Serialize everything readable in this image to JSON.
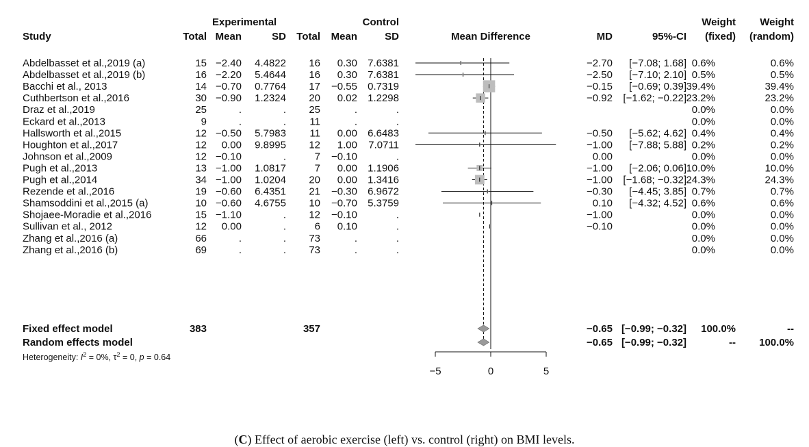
{
  "caption": {
    "letter": "C",
    "text": ") Effect of aerobic exercise (left) vs. control (right) on BMI levels."
  },
  "headers": {
    "study": "Study",
    "experimental": "Experimental",
    "control": "Control",
    "total": "Total",
    "mean": "Mean",
    "sd": "SD",
    "mean_difference": "Mean Difference",
    "md": "MD",
    "ci": "95%-CI",
    "weight": "Weight",
    "fixed": "(fixed)",
    "random": "(random)"
  },
  "chart_data": {
    "type": "forest",
    "x_axis": {
      "lim": [
        -5,
        5
      ],
      "ticks": [
        "−5",
        "0",
        "5"
      ],
      "tick_values": [
        -5,
        0,
        5
      ]
    },
    "studies": [
      {
        "study": "Abdelbasset et al.,2019 (a)",
        "e_total": "15",
        "e_mean": "−2.40",
        "e_sd": "4.4822",
        "c_total": "16",
        "c_mean": "0.30",
        "c_sd": "7.6381",
        "md_text": "−2.70",
        "ci_text": "[−7.08;  1.68]",
        "w_fixed": "0.6%",
        "w_random": "0.6%",
        "md": -2.7,
        "lo": -7.08,
        "hi": 1.68,
        "w": 0.6
      },
      {
        "study": "Abdelbasset et al.,2019 (b)",
        "e_total": "16",
        "e_mean": "−2.20",
        "e_sd": "5.4644",
        "c_total": "16",
        "c_mean": "0.30",
        "c_sd": "7.6381",
        "md_text": "−2.50",
        "ci_text": "[−7.10;  2.10]",
        "w_fixed": "0.5%",
        "w_random": "0.5%",
        "md": -2.5,
        "lo": -7.1,
        "hi": 2.1,
        "w": 0.5
      },
      {
        "study": "Bacchi et al., 2013",
        "e_total": "14",
        "e_mean": "−0.70",
        "e_sd": "0.7764",
        "c_total": "17",
        "c_mean": "−0.55",
        "c_sd": "0.7319",
        "md_text": "−0.15",
        "ci_text": "[−0.69;  0.39]",
        "w_fixed": "39.4%",
        "w_random": "39.4%",
        "md": -0.15,
        "lo": -0.69,
        "hi": 0.39,
        "w": 39.4
      },
      {
        "study": "Cuthbertson et al.,2016",
        "e_total": "30",
        "e_mean": "−0.90",
        "e_sd": "1.2324",
        "c_total": "20",
        "c_mean": "0.02",
        "c_sd": "1.2298",
        "md_text": "−0.92",
        "ci_text": "[−1.62; −0.22]",
        "w_fixed": "23.2%",
        "w_random": "23.2%",
        "md": -0.92,
        "lo": -1.62,
        "hi": -0.22,
        "w": 23.2
      },
      {
        "study": "Draz et al.,2019",
        "e_total": "25",
        "e_mean": ".",
        "e_sd": ".",
        "c_total": "25",
        "c_mean": ".",
        "c_sd": ".",
        "md_text": "",
        "ci_text": "",
        "w_fixed": "0.0%",
        "w_random": "0.0%",
        "md": null,
        "lo": null,
        "hi": null,
        "w": 0
      },
      {
        "study": "Eckard et al.,2013",
        "e_total": "9",
        "e_mean": ".",
        "e_sd": ".",
        "c_total": "11",
        "c_mean": ".",
        "c_sd": ".",
        "md_text": "",
        "ci_text": "",
        "w_fixed": "0.0%",
        "w_random": "0.0%",
        "md": null,
        "lo": null,
        "hi": null,
        "w": 0
      },
      {
        "study": "Hallsworth et al.,2015",
        "e_total": "12",
        "e_mean": "−0.50",
        "e_sd": "5.7983",
        "c_total": "11",
        "c_mean": "0.00",
        "c_sd": "6.6483",
        "md_text": "−0.50",
        "ci_text": "[−5.62;  4.62]",
        "w_fixed": "0.4%",
        "w_random": "0.4%",
        "md": -0.5,
        "lo": -5.62,
        "hi": 4.62,
        "w": 0.4
      },
      {
        "study": "Houghton et al.,2017",
        "e_total": "12",
        "e_mean": "0.00",
        "e_sd": "9.8995",
        "c_total": "12",
        "c_mean": "1.00",
        "c_sd": "7.0711",
        "md_text": "−1.00",
        "ci_text": "[−7.88;  5.88]",
        "w_fixed": "0.2%",
        "w_random": "0.2%",
        "md": -1.0,
        "lo": -7.88,
        "hi": 5.88,
        "w": 0.2
      },
      {
        "study": "Johnson et al.,2009",
        "e_total": "12",
        "e_mean": "−0.10",
        "e_sd": ".",
        "c_total": "7",
        "c_mean": "−0.10",
        "c_sd": ".",
        "md_text": "0.00",
        "ci_text": "",
        "w_fixed": "0.0%",
        "w_random": "0.0%",
        "md": 0.0,
        "lo": null,
        "hi": null,
        "w": 0
      },
      {
        "study": "Pugh et al.,2013",
        "e_total": "13",
        "e_mean": "−1.00",
        "e_sd": "1.0817",
        "c_total": "7",
        "c_mean": "0.00",
        "c_sd": "1.1906",
        "md_text": "−1.00",
        "ci_text": "[−2.06;  0.06]",
        "w_fixed": "10.0%",
        "w_random": "10.0%",
        "md": -1.0,
        "lo": -2.06,
        "hi": 0.06,
        "w": 10.0
      },
      {
        "study": "Pugh et al.,2014",
        "e_total": "34",
        "e_mean": "−1.00",
        "e_sd": "1.0204",
        "c_total": "20",
        "c_mean": "0.00",
        "c_sd": "1.3416",
        "md_text": "−1.00",
        "ci_text": "[−1.68; −0.32]",
        "w_fixed": "24.3%",
        "w_random": "24.3%",
        "md": -1.0,
        "lo": -1.68,
        "hi": -0.32,
        "w": 24.3
      },
      {
        "study": "Rezende et al.,2016",
        "e_total": "19",
        "e_mean": "−0.60",
        "e_sd": "6.4351",
        "c_total": "21",
        "c_mean": "−0.30",
        "c_sd": "6.9672",
        "md_text": "−0.30",
        "ci_text": "[−4.45;  3.85]",
        "w_fixed": "0.7%",
        "w_random": "0.7%",
        "md": -0.3,
        "lo": -4.45,
        "hi": 3.85,
        "w": 0.7
      },
      {
        "study": "Shamsoddini et al.,2015 (a)",
        "e_total": "10",
        "e_mean": "−0.60",
        "e_sd": "4.6755",
        "c_total": "10",
        "c_mean": "−0.70",
        "c_sd": "5.3759",
        "md_text": "0.10",
        "ci_text": "[−4.32;  4.52]",
        "w_fixed": "0.6%",
        "w_random": "0.6%",
        "md": 0.1,
        "lo": -4.32,
        "hi": 4.52,
        "w": 0.6
      },
      {
        "study": "Shojaee-Moradie et al.,2016",
        "e_total": "15",
        "e_mean": "−1.10",
        "e_sd": ".",
        "c_total": "12",
        "c_mean": "−0.10",
        "c_sd": ".",
        "md_text": "−1.00",
        "ci_text": "",
        "w_fixed": "0.0%",
        "w_random": "0.0%",
        "md": -1.0,
        "lo": null,
        "hi": null,
        "w": 0
      },
      {
        "study": "Sullivan et al., 2012",
        "e_total": "12",
        "e_mean": "0.00",
        "e_sd": ".",
        "c_total": "6",
        "c_mean": "0.10",
        "c_sd": ".",
        "md_text": "−0.10",
        "ci_text": "",
        "w_fixed": "0.0%",
        "w_random": "0.0%",
        "md": -0.1,
        "lo": null,
        "hi": null,
        "w": 0
      },
      {
        "study": "Zhang et al.,2016 (a)",
        "e_total": "66",
        "e_mean": ".",
        "e_sd": ".",
        "c_total": "73",
        "c_mean": ".",
        "c_sd": ".",
        "md_text": "",
        "ci_text": "",
        "w_fixed": "0.0%",
        "w_random": "0.0%",
        "md": null,
        "lo": null,
        "hi": null,
        "w": 0
      },
      {
        "study": "Zhang et al.,2016 (b)",
        "e_total": "69",
        "e_mean": ".",
        "e_sd": ".",
        "c_total": "73",
        "c_mean": ".",
        "c_sd": ".",
        "md_text": "",
        "ci_text": "",
        "w_fixed": "0.0%",
        "w_random": "0.0%",
        "md": null,
        "lo": null,
        "hi": null,
        "w": 0
      }
    ],
    "summaries": [
      {
        "label": "Fixed effect model",
        "e_total": "383",
        "c_total": "357",
        "md_text": "−0.65",
        "ci_text": "[−0.99; −0.32]",
        "w_fixed": "100.0%",
        "w_random": "--",
        "md": -0.65,
        "lo": -0.99,
        "hi": -0.32
      },
      {
        "label": "Random effects model",
        "e_total": "",
        "c_total": "",
        "md_text": "−0.65",
        "ci_text": "[−0.99; −0.32]",
        "w_fixed": "--",
        "w_random": "100.0%",
        "md": -0.65,
        "lo": -0.99,
        "hi": -0.32
      }
    ],
    "heterogeneity": {
      "prefix": "Heterogeneity: ",
      "i2": "I",
      "i2_rest": " = 0%, ",
      "tau": "τ",
      "tau_rest": " = 0, ",
      "p": "p",
      "p_rest": " = 0.64"
    },
    "colors": {
      "square": "#bdbdbd",
      "diamond": "#9a9a9a",
      "line": "#111111"
    }
  }
}
